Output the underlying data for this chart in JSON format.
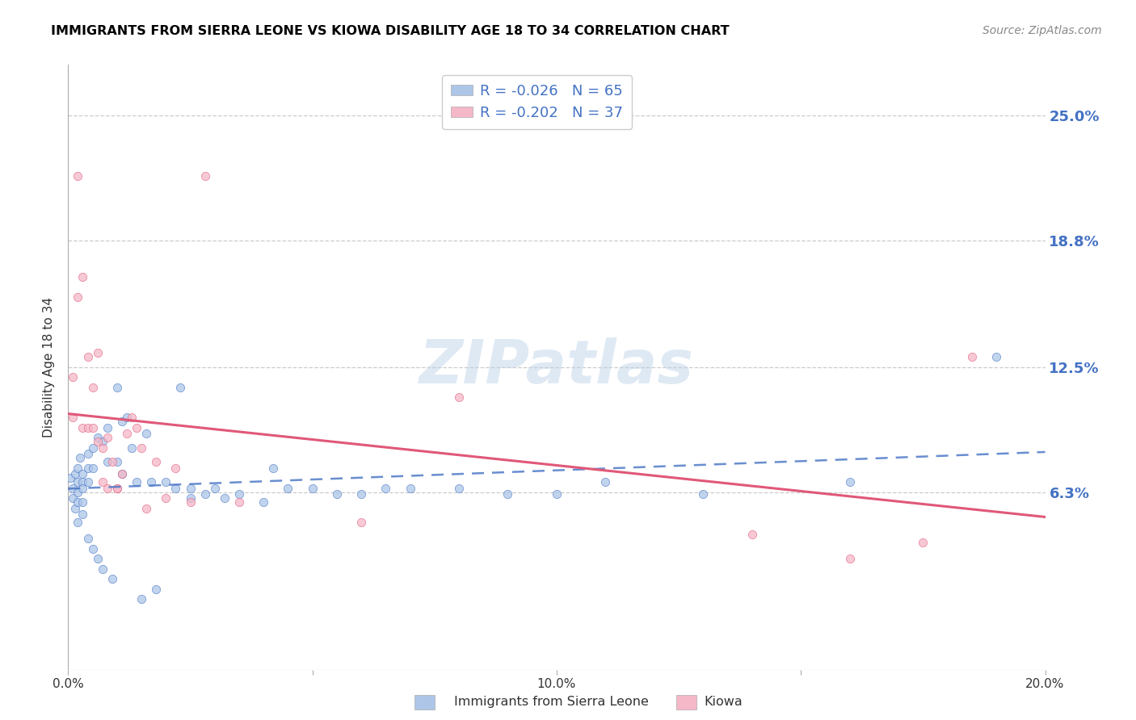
{
  "title": "IMMIGRANTS FROM SIERRA LEONE VS KIOWA DISABILITY AGE 18 TO 34 CORRELATION CHART",
  "source_text": "Source: ZipAtlas.com",
  "ylabel": "Disability Age 18 to 34",
  "legend_label_1": "Immigrants from Sierra Leone",
  "legend_label_2": "Kiowa",
  "R1": -0.026,
  "N1": 65,
  "R2": -0.202,
  "N2": 37,
  "color1": "#adc6e8",
  "color2": "#f5b8c8",
  "line_color1": "#4472c4",
  "line_color2": "#e05878",
  "xlim": [
    0.0,
    0.2
  ],
  "ylim": [
    -0.025,
    0.275
  ],
  "yticks": [
    0.063,
    0.125,
    0.188,
    0.25
  ],
  "ytick_labels": [
    "6.3%",
    "12.5%",
    "18.8%",
    "25.0%"
  ],
  "xticks": [
    0.0,
    0.05,
    0.1,
    0.15,
    0.2
  ],
  "xtick_labels": [
    "0.0%",
    "",
    "10.0%",
    "",
    "20.0%"
  ],
  "watermark": "ZIPatlas",
  "blue_x": [
    0.0005,
    0.001,
    0.001,
    0.0015,
    0.0015,
    0.002,
    0.002,
    0.002,
    0.002,
    0.002,
    0.0025,
    0.003,
    0.003,
    0.003,
    0.003,
    0.003,
    0.004,
    0.004,
    0.004,
    0.004,
    0.005,
    0.005,
    0.005,
    0.006,
    0.006,
    0.007,
    0.007,
    0.008,
    0.008,
    0.009,
    0.01,
    0.01,
    0.011,
    0.011,
    0.012,
    0.013,
    0.014,
    0.015,
    0.016,
    0.017,
    0.018,
    0.02,
    0.022,
    0.023,
    0.025,
    0.025,
    0.028,
    0.03,
    0.032,
    0.035,
    0.04,
    0.042,
    0.045,
    0.05,
    0.055,
    0.06,
    0.065,
    0.07,
    0.08,
    0.09,
    0.1,
    0.11,
    0.13,
    0.16,
    0.19
  ],
  "blue_y": [
    0.07,
    0.065,
    0.06,
    0.072,
    0.055,
    0.075,
    0.068,
    0.063,
    0.058,
    0.048,
    0.08,
    0.072,
    0.068,
    0.065,
    0.058,
    0.052,
    0.082,
    0.075,
    0.068,
    0.04,
    0.085,
    0.075,
    0.035,
    0.09,
    0.03,
    0.088,
    0.025,
    0.095,
    0.078,
    0.02,
    0.115,
    0.078,
    0.098,
    0.072,
    0.1,
    0.085,
    0.068,
    0.01,
    0.092,
    0.068,
    0.015,
    0.068,
    0.065,
    0.115,
    0.065,
    0.06,
    0.062,
    0.065,
    0.06,
    0.062,
    0.058,
    0.075,
    0.065,
    0.065,
    0.062,
    0.062,
    0.065,
    0.065,
    0.065,
    0.062,
    0.062,
    0.068,
    0.062,
    0.068,
    0.13
  ],
  "pink_x": [
    0.001,
    0.001,
    0.002,
    0.002,
    0.003,
    0.003,
    0.004,
    0.004,
    0.005,
    0.005,
    0.006,
    0.006,
    0.007,
    0.007,
    0.008,
    0.008,
    0.009,
    0.01,
    0.01,
    0.011,
    0.012,
    0.013,
    0.014,
    0.015,
    0.016,
    0.018,
    0.02,
    0.022,
    0.025,
    0.028,
    0.035,
    0.06,
    0.08,
    0.14,
    0.16,
    0.175,
    0.185
  ],
  "pink_y": [
    0.12,
    0.1,
    0.22,
    0.16,
    0.17,
    0.095,
    0.13,
    0.095,
    0.115,
    0.095,
    0.132,
    0.088,
    0.085,
    0.068,
    0.09,
    0.065,
    0.078,
    0.065,
    0.065,
    0.072,
    0.092,
    0.1,
    0.095,
    0.085,
    0.055,
    0.078,
    0.06,
    0.075,
    0.058,
    0.22,
    0.058,
    0.048,
    0.11,
    0.042,
    0.03,
    0.038,
    0.13
  ]
}
